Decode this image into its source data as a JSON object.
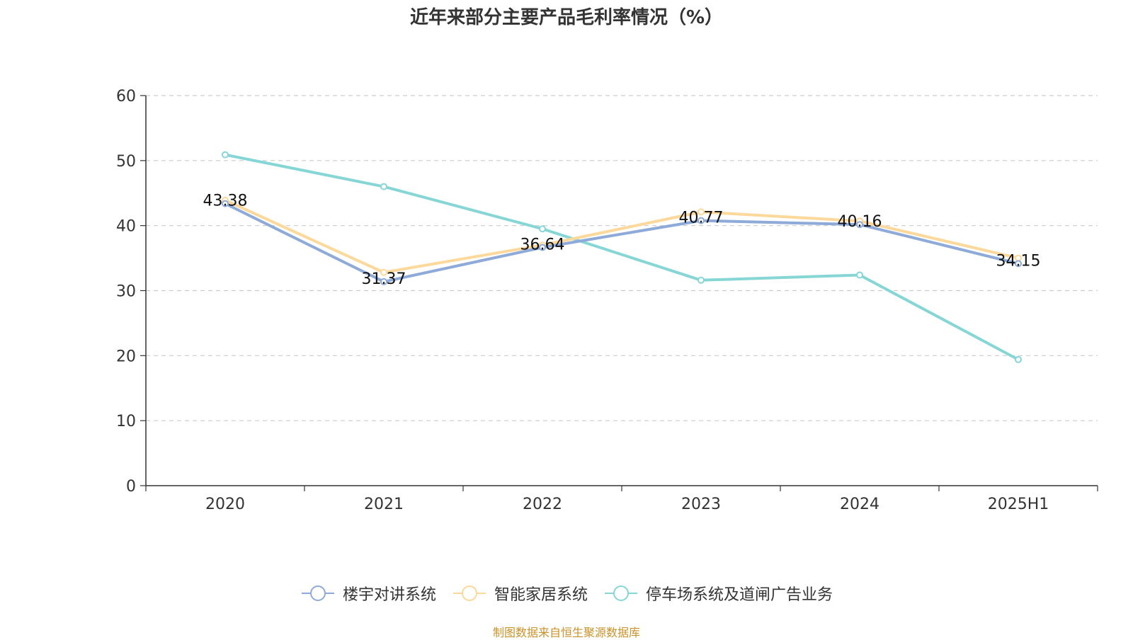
{
  "chart_data": {
    "type": "line",
    "title": "近年来部分主要产品毛利率情况（%）",
    "categories": [
      "2020",
      "2021",
      "2022",
      "2023",
      "2024",
      "2025H1"
    ],
    "ylim": [
      0,
      60
    ],
    "yticks": [
      0,
      10,
      20,
      30,
      40,
      50,
      60
    ],
    "grid": true,
    "legend_position": "bottom",
    "series": [
      {
        "name": "楼宇对讲系统",
        "color": "#8eaad8",
        "values": [
          43.38,
          31.37,
          36.64,
          40.77,
          40.16,
          34.15
        ],
        "labels": [
          "43.38",
          "31.37",
          "36.64",
          "40.77",
          "40.16",
          "34.15"
        ]
      },
      {
        "name": "智能家居系统",
        "color": "#fcd89a",
        "values": [
          43.9,
          32.8,
          37.0,
          42.1,
          40.7,
          35.0
        ]
      },
      {
        "name": "停车场系统及道闸广告业务",
        "color": "#86d6d6",
        "values": [
          50.9,
          46.0,
          39.5,
          31.6,
          32.4,
          19.4
        ]
      }
    ]
  },
  "source": {
    "text": "制图数据来自恒生聚源数据库",
    "color": "#c9922a"
  }
}
